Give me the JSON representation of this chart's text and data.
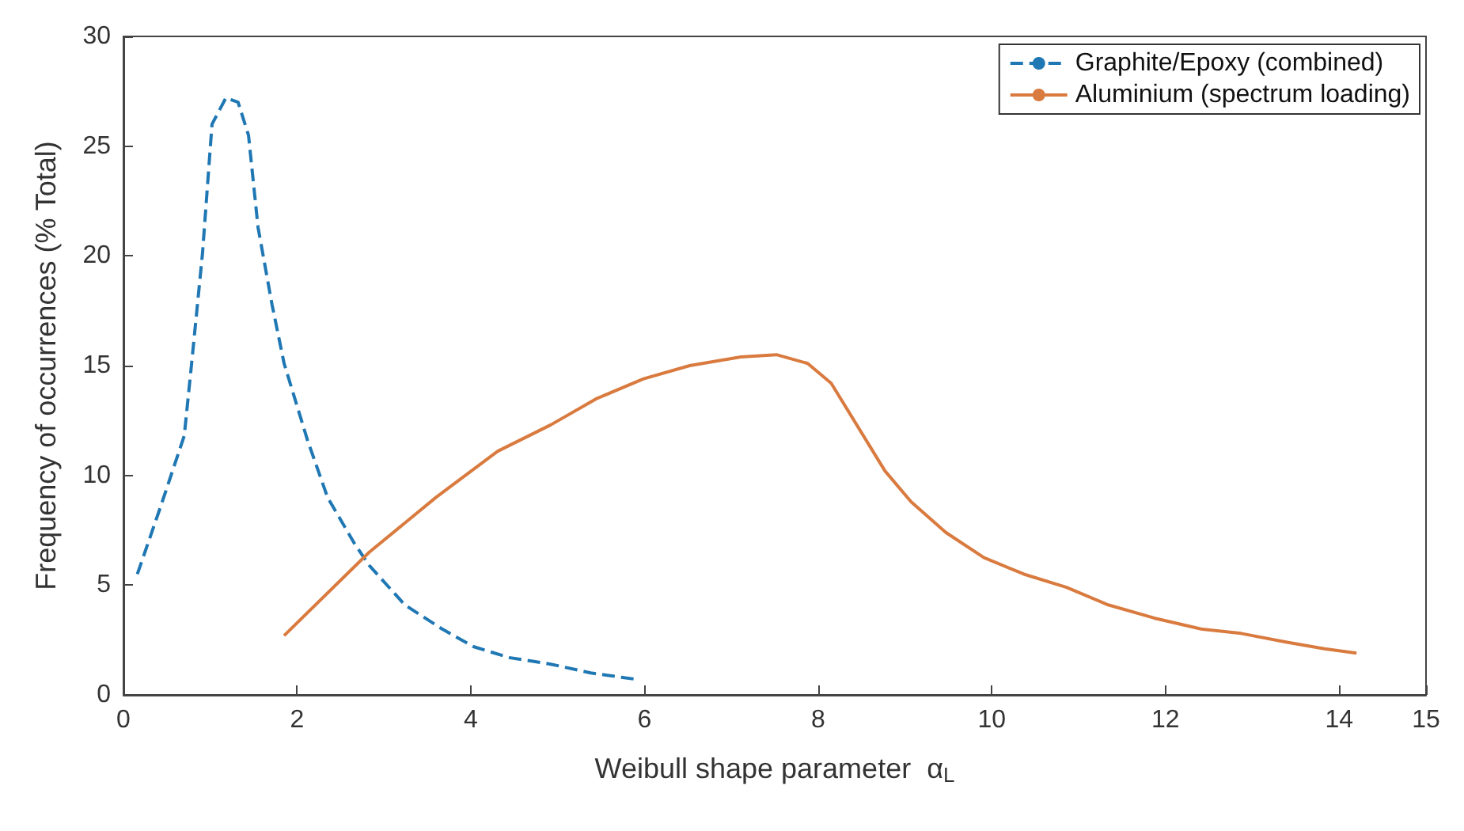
{
  "chart_data": {
    "type": "line",
    "xlabel": "Weibull shape parameter  α$_{L}$",
    "ylabel": "Frequency of occurrences (% Total)",
    "xlim": [
      0,
      15
    ],
    "xticks": [
      0,
      2,
      4,
      6,
      8,
      10,
      12,
      14,
      15
    ],
    "ylim": [
      0,
      30
    ],
    "yticks": [
      0,
      5,
      10,
      15,
      20,
      25,
      30
    ],
    "grid": false,
    "legend": "top right",
    "marker": "none",
    "series": [
      {
        "name": "Graphite/Epoxy (combined)",
        "color": "#1f77b4",
        "line_style": "dashed",
        "x": [
          0.16,
          0.43,
          0.7,
          0.78,
          0.91,
          1.02,
          1.18,
          1.32,
          1.44,
          1.55,
          1.71,
          1.85,
          2.12,
          2.35,
          2.66,
          2.83,
          3.24,
          3.67,
          4.03,
          4.44,
          4.92,
          5.38,
          5.92
        ],
        "values": [
          5.5,
          8.6,
          11.8,
          14.9,
          20.1,
          26,
          27.2,
          27,
          25.5,
          21.3,
          17.8,
          15.1,
          11.6,
          9,
          6.9,
          5.9,
          4.1,
          3,
          2.2,
          1.7,
          1.4,
          1,
          0.7
        ]
      },
      {
        "name": "Aluminium (spectrum loading)",
        "color": "#d97a3f",
        "line_style": "solid",
        "x": [
          1.85,
          2.83,
          3.6,
          4.31,
          4.92,
          5.45,
          5.99,
          6.52,
          7.11,
          7.52,
          7.88,
          8.15,
          8.77,
          9.07,
          9.47,
          9.91,
          10.37,
          10.86,
          11.34,
          11.87,
          12.41,
          12.87,
          13.4,
          13.83,
          14.2
        ],
        "values": [
          2.7,
          6.5,
          9,
          11.1,
          12.3,
          13.5,
          14.4,
          15,
          15.4,
          15.5,
          15.1,
          14.2,
          10.2,
          8.8,
          7.4,
          6.25,
          5.5,
          4.9,
          4.1,
          3.5,
          3,
          2.8,
          2.4,
          2.1,
          1.9
        ]
      }
    ]
  }
}
